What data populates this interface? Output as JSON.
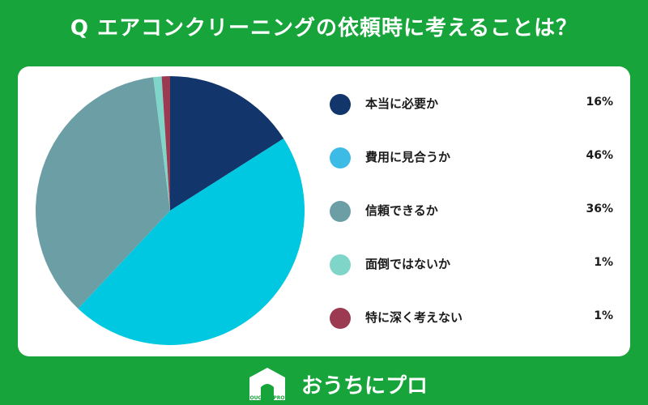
{
  "title": "Q エアコンクリーニングの依頼時に考えることは？",
  "chart_data": {
    "type": "pie",
    "title": "",
    "legend_position": "right",
    "categories": [
      "本当に必要か",
      "費用に見合うか",
      "信頼できるか",
      "面倒ではないか",
      "特に深く考えない"
    ],
    "values": [
      16,
      46,
      36,
      1,
      1
    ],
    "value_labels": [
      "16%",
      "46%",
      "36%",
      "1%",
      "1%"
    ],
    "colors": [
      "#12356b",
      "#00c8e0",
      "#6c9ea6",
      "#7fd6c8",
      "#9c3a52"
    ],
    "legend_colors": [
      "#12356b",
      "#3bbbe6",
      "#6c9ea6",
      "#7fd6c8",
      "#9c3a52"
    ]
  },
  "logo": {
    "text": "おうちにプロ",
    "mark_text": "OUCHINIPRO",
    "mark_icon": "house-icon"
  }
}
